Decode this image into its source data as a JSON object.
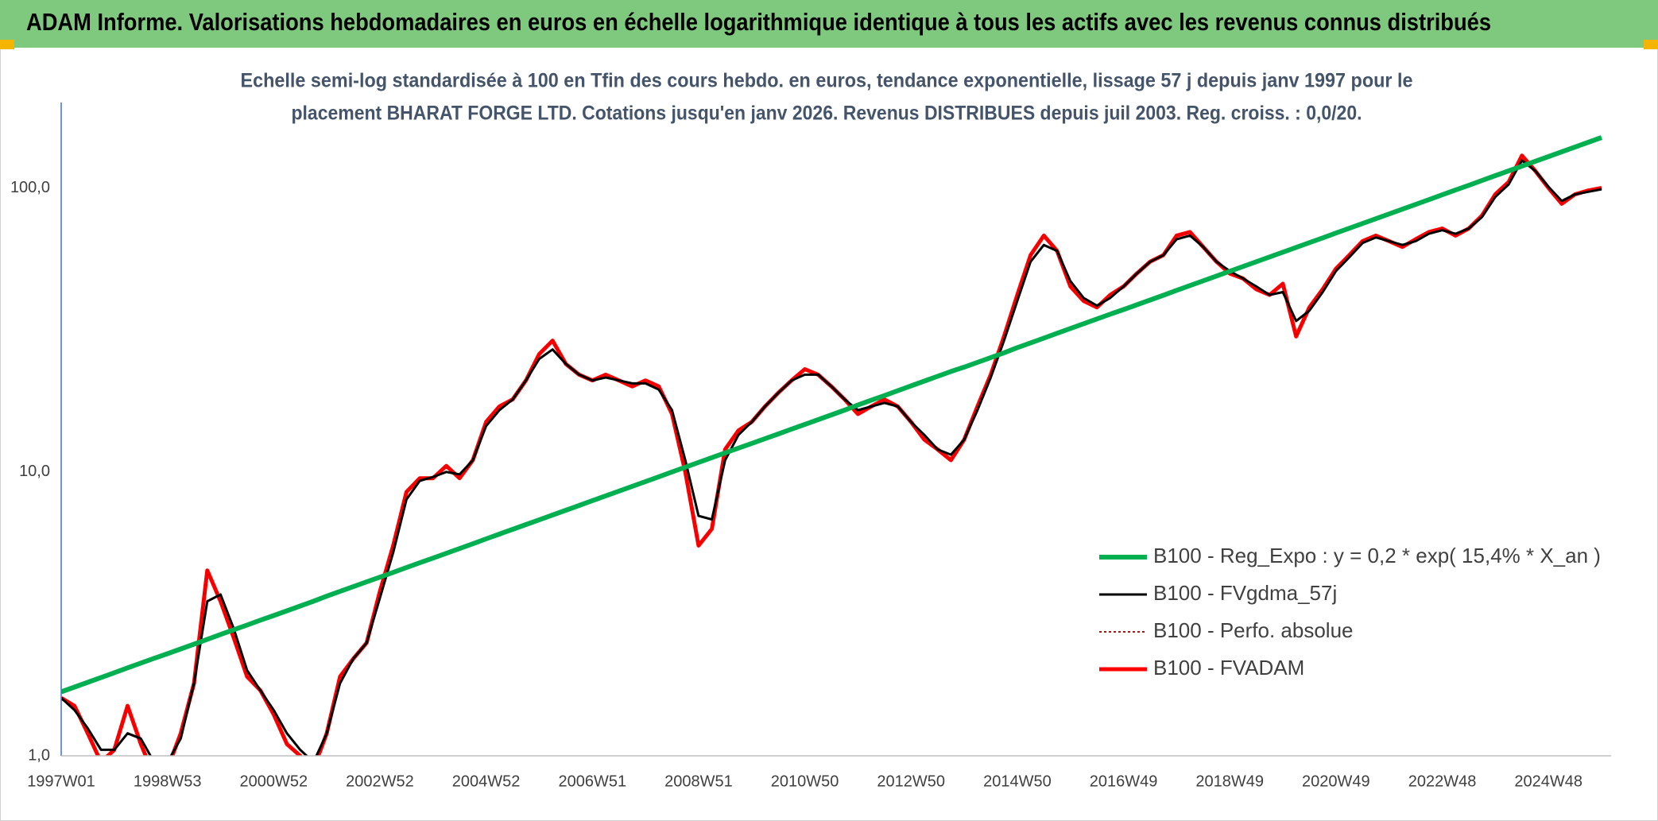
{
  "header": {
    "title": "ADAM Informe. Valorisations hebdomadaires en euros en échelle logarithmique identique à tous les actifs avec les revenus connus distribués"
  },
  "chart_data": {
    "type": "line",
    "subtitle": [
      "Echelle semi-log standardisée à 100 en Tfin des cours hebdo. en euros, tendance exponentielle, lissage 57 j depuis janv 1997 pour le",
      "placement BHARAT FORGE LTD. Cotations jusqu'en janv 2026. Revenus DISTRIBUES depuis juil 2003. Reg. croiss. : 0,0/20."
    ],
    "log_scale": true,
    "grid": true,
    "legend": "lower right",
    "ylim": [
      1,
      200
    ],
    "yticks": [
      {
        "value": 1,
        "label": "1,0"
      },
      {
        "value": 10,
        "label": "10,0"
      },
      {
        "value": 100,
        "label": "100,0"
      }
    ],
    "categories": [
      "1997W01",
      null,
      null,
      null,
      null,
      null,
      null,
      null,
      "1998W53",
      null,
      null,
      null,
      null,
      null,
      null,
      null,
      "2000W52",
      null,
      null,
      null,
      null,
      null,
      null,
      null,
      "2002W52",
      null,
      null,
      null,
      null,
      null,
      null,
      null,
      "2004W52",
      null,
      null,
      null,
      null,
      null,
      null,
      null,
      "2006W51",
      null,
      null,
      null,
      null,
      null,
      null,
      null,
      "2008W51",
      null,
      null,
      null,
      null,
      null,
      null,
      null,
      "2010W50",
      null,
      null,
      null,
      null,
      null,
      null,
      null,
      "2012W50",
      null,
      null,
      null,
      null,
      null,
      null,
      null,
      "2014W50",
      null,
      null,
      null,
      null,
      null,
      null,
      null,
      "2016W49",
      null,
      null,
      null,
      null,
      null,
      null,
      null,
      "2018W49",
      null,
      null,
      null,
      null,
      null,
      null,
      null,
      "2020W49",
      null,
      null,
      null,
      null,
      null,
      null,
      null,
      "2022W48",
      null,
      null,
      null,
      null,
      null,
      null,
      null,
      "2024W48",
      null,
      null,
      null,
      null
    ],
    "series": [
      {
        "name": "B100 - Reg_Expo : y = 0,2 * exp( 15,4% *  X_an )",
        "color": "#00b050",
        "width": 6,
        "dash": "none",
        "values": [
          1.68,
          1.746,
          1.815,
          1.887,
          1.963,
          2.041,
          2.121,
          2.205,
          2.29,
          2.38,
          2.474,
          2.572,
          2.675,
          2.781,
          2.89,
          3.005,
          3.12,
          3.243,
          3.371,
          3.504,
          3.65,
          3.794,
          3.944,
          4.1,
          4.26,
          4.428,
          4.603,
          4.785,
          4.97,
          5.166,
          5.37,
          5.582,
          5.81,
          6.04,
          6.278,
          6.526,
          6.78,
          7.048,
          7.326,
          7.615,
          7.92,
          8.233,
          8.558,
          8.896,
          9.25,
          9.615,
          9.995,
          10.39,
          10.8,
          11.23,
          11.67,
          12.13,
          12.6,
          13.1,
          13.61,
          14.15,
          14.7,
          15.28,
          15.88,
          16.51,
          17.2,
          17.88,
          18.58,
          19.32,
          20.1,
          20.89,
          21.72,
          22.58,
          23.4,
          24.32,
          25.28,
          26.28,
          27.4,
          28.48,
          29.61,
          30.78,
          32,
          33.26,
          34.58,
          35.94,
          37.3,
          38.77,
          40.3,
          41.9,
          43.6,
          45.32,
          47.11,
          48.97,
          50.9,
          52.91,
          55,
          57.17,
          59.4,
          61.75,
          64.18,
          66.72,
          69.4,
          72.14,
          74.99,
          77.95,
          81,
          84.2,
          87.52,
          90.98,
          94.6,
          98.34,
          102.2,
          106.3,
          110.5,
          114.9,
          119.4,
          124.1,
          129,
          134.1,
          139.4,
          144.9,
          150.6
        ]
      },
      {
        "name": "B100 - FVgdma_57j",
        "color": "#000000",
        "width": 3,
        "dash": "none",
        "values": [
          1.6,
          1.45,
          1.25,
          1.05,
          1.05,
          1.2,
          1.15,
          0.95,
          0.95,
          1.15,
          1.8,
          3.5,
          3.7,
          2.8,
          2.0,
          1.7,
          1.45,
          1.2,
          1.05,
          0.95,
          1.2,
          1.8,
          2.2,
          2.5,
          3.6,
          5.2,
          8.0,
          9.3,
          9.6,
          10,
          9.8,
          11,
          14.5,
          16.5,
          18,
          21,
          25,
          27,
          24,
          22,
          21,
          21.5,
          21,
          20.5,
          20.5,
          19.5,
          16.5,
          11,
          7,
          6.8,
          11,
          13.5,
          15,
          17,
          19,
          21,
          22,
          22,
          20,
          18,
          16.5,
          17,
          17.5,
          17,
          15,
          13.5,
          12,
          11.5,
          13,
          16.5,
          21.5,
          29,
          40,
          55,
          63,
          60,
          47,
          41,
          38.5,
          41,
          45,
          50,
          55,
          58,
          66,
          68,
          62,
          55,
          51,
          48,
          45,
          42,
          43,
          34,
          37,
          43,
          51,
          57,
          64,
          67,
          65,
          63,
          65,
          69,
          71,
          69,
          72,
          79,
          93,
          103,
          125,
          115,
          101,
          90,
          95,
          97,
          99
        ]
      },
      {
        "name": "B100 - Perfo. absolue",
        "color": "#e00000",
        "width": 2,
        "dash": "3 3",
        "values": [
          1.6,
          1.5,
          1.2,
          0.95,
          1.05,
          1.5,
          1.1,
          0.85,
          0.9,
          1.2,
          1.8,
          4.5,
          3.5,
          2.6,
          1.9,
          1.7,
          1.4,
          1.1,
          1.0,
          0.9,
          1.2,
          1.9,
          2.2,
          2.5,
          3.8,
          5.5,
          8.5,
          9.5,
          9.5,
          10.5,
          9.5,
          11,
          15,
          17,
          18,
          21,
          26,
          29,
          24,
          22,
          21,
          22,
          21,
          20,
          21,
          20,
          16,
          10,
          5.5,
          6.3,
          12,
          14,
          15,
          17,
          19,
          21,
          23,
          22,
          20,
          18,
          16,
          17,
          18,
          17,
          15,
          13,
          12,
          11,
          13,
          17,
          22,
          30,
          42,
          58,
          68,
          60,
          45,
          40,
          38,
          42,
          45,
          50,
          55,
          58,
          68,
          70,
          62,
          55,
          50,
          48,
          44,
          42,
          46,
          30,
          38,
          44,
          52,
          58,
          65,
          68,
          65,
          62,
          66,
          70,
          72,
          68,
          72,
          80,
          95,
          105,
          130,
          115,
          100,
          88,
          95,
          98,
          100
        ]
      },
      {
        "name": "B100 - FVADAM",
        "color": "#ff0000",
        "width": 5,
        "dash": "none",
        "values": [
          1.6,
          1.5,
          1.2,
          0.95,
          1.05,
          1.5,
          1.1,
          0.85,
          0.9,
          1.2,
          1.8,
          4.5,
          3.5,
          2.6,
          1.9,
          1.7,
          1.4,
          1.1,
          1.0,
          0.9,
          1.2,
          1.9,
          2.2,
          2.5,
          3.8,
          5.5,
          8.5,
          9.5,
          9.5,
          10.5,
          9.5,
          11,
          15,
          17,
          18,
          21,
          26,
          29,
          24,
          22,
          21,
          22,
          21,
          20,
          21,
          20,
          16,
          10,
          5.5,
          6.3,
          12,
          14,
          15,
          17,
          19,
          21,
          23,
          22,
          20,
          18,
          16,
          17,
          18,
          17,
          15,
          13,
          12,
          11,
          13,
          17,
          22,
          30,
          42,
          58,
          68,
          60,
          45,
          40,
          38,
          42,
          45,
          50,
          55,
          58,
          68,
          70,
          62,
          55,
          50,
          48,
          44,
          42,
          46,
          30,
          38,
          44,
          52,
          58,
          65,
          68,
          65,
          62,
          66,
          70,
          72,
          68,
          72,
          80,
          95,
          105,
          130,
          115,
          100,
          88,
          95,
          98,
          100
        ]
      }
    ]
  }
}
